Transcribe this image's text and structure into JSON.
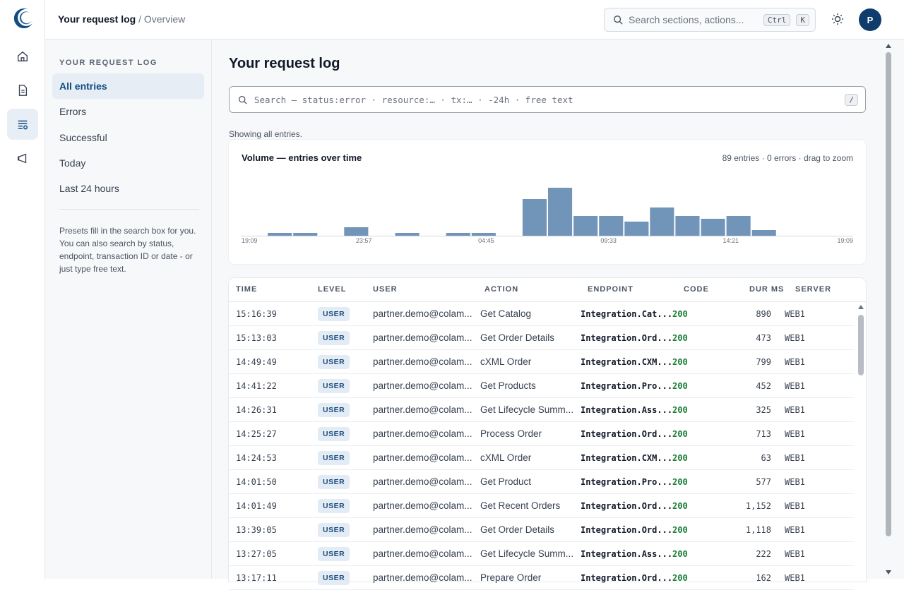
{
  "colors": {
    "accent": "#0f4c81",
    "bar": "#7195b8",
    "code_ok": "#1a7f37",
    "badge_bg": "#e3ebf4"
  },
  "rail": {
    "logo": "crescent-logo",
    "items": [
      {
        "icon": "home-icon"
      },
      {
        "icon": "document-icon"
      },
      {
        "icon": "request-log-icon",
        "active": true
      },
      {
        "icon": "megaphone-icon"
      }
    ]
  },
  "header": {
    "breadcrumb_current": "Your request log",
    "breadcrumb_sep": " / ",
    "breadcrumb_page": "Overview",
    "search_placeholder": "Search sections, actions...",
    "search_key1": "Ctrl",
    "search_key2": "K",
    "theme_icon": "sun-icon",
    "avatar_initial": "P"
  },
  "sidebar": {
    "heading": "YOUR REQUEST LOG",
    "items": [
      {
        "label": "All entries",
        "active": true
      },
      {
        "label": "Errors"
      },
      {
        "label": "Successful"
      },
      {
        "label": "Today"
      },
      {
        "label": "Last 24 hours"
      }
    ],
    "help_text": "Presets fill in the search box for you. You can also search by status, endpoint, transaction ID or date - or just type free text."
  },
  "main": {
    "title": "Your request log",
    "search_placeholder": "Search — status:error · resource:… · tx:… · -24h · free text",
    "search_key": "/",
    "showing_text": "Showing all entries."
  },
  "chart_data": {
    "type": "bar",
    "title": "Volume — entries over time",
    "meta": "89 entries · 0 errors · drag to zoom",
    "x_tick_labels": [
      "19:09",
      "23:57",
      "04:45",
      "09:33",
      "14:21",
      "19:09"
    ],
    "values": [
      0,
      1,
      1,
      0,
      3,
      0,
      1,
      0,
      1,
      1,
      0,
      13,
      17,
      7,
      7,
      5,
      10,
      7,
      6,
      7,
      2,
      0,
      0,
      0
    ],
    "ylim": [
      0,
      17
    ],
    "grid": false,
    "legend": "none"
  },
  "table": {
    "columns": [
      "TIME",
      "LEVEL",
      "USER",
      "ACTION",
      "ENDPOINT",
      "CODE",
      "DUR MS",
      "SERVER"
    ],
    "rows": [
      {
        "time": "15:16:39",
        "level": "USER",
        "user": "partner.demo@colam...",
        "action": "Get Catalog",
        "endpoint": "Integration.Cat...",
        "code": "200",
        "dur": "890",
        "server": "WEB1"
      },
      {
        "time": "15:13:03",
        "level": "USER",
        "user": "partner.demo@colam...",
        "action": "Get Order Details",
        "endpoint": "Integration.Ord...",
        "code": "200",
        "dur": "473",
        "server": "WEB1"
      },
      {
        "time": "14:49:49",
        "level": "USER",
        "user": "partner.demo@colam...",
        "action": "cXML Order",
        "endpoint": "Integration.CXM...",
        "code": "200",
        "dur": "799",
        "server": "WEB1"
      },
      {
        "time": "14:41:22",
        "level": "USER",
        "user": "partner.demo@colam...",
        "action": "Get Products",
        "endpoint": "Integration.Pro...",
        "code": "200",
        "dur": "452",
        "server": "WEB1"
      },
      {
        "time": "14:26:31",
        "level": "USER",
        "user": "partner.demo@colam...",
        "action": "Get Lifecycle Summ...",
        "endpoint": "Integration.Ass...",
        "code": "200",
        "dur": "325",
        "server": "WEB1"
      },
      {
        "time": "14:25:27",
        "level": "USER",
        "user": "partner.demo@colam...",
        "action": "Process Order",
        "endpoint": "Integration.Ord...",
        "code": "200",
        "dur": "713",
        "server": "WEB1"
      },
      {
        "time": "14:24:53",
        "level": "USER",
        "user": "partner.demo@colam...",
        "action": "cXML Order",
        "endpoint": "Integration.CXM...",
        "code": "200",
        "dur": "63",
        "server": "WEB1"
      },
      {
        "time": "14:01:50",
        "level": "USER",
        "user": "partner.demo@colam...",
        "action": "Get Product",
        "endpoint": "Integration.Pro...",
        "code": "200",
        "dur": "577",
        "server": "WEB1"
      },
      {
        "time": "14:01:49",
        "level": "USER",
        "user": "partner.demo@colam...",
        "action": "Get Recent Orders",
        "endpoint": "Integration.Ord...",
        "code": "200",
        "dur": "1,152",
        "server": "WEB1"
      },
      {
        "time": "13:39:05",
        "level": "USER",
        "user": "partner.demo@colam...",
        "action": "Get Order Details",
        "endpoint": "Integration.Ord...",
        "code": "200",
        "dur": "1,118",
        "server": "WEB1"
      },
      {
        "time": "13:27:05",
        "level": "USER",
        "user": "partner.demo@colam...",
        "action": "Get Lifecycle Summ...",
        "endpoint": "Integration.Ass...",
        "code": "200",
        "dur": "222",
        "server": "WEB1"
      },
      {
        "time": "13:17:11",
        "level": "USER",
        "user": "partner.demo@colam...",
        "action": "Prepare Order",
        "endpoint": "Integration.Ord...",
        "code": "200",
        "dur": "162",
        "server": "WEB1"
      }
    ]
  }
}
